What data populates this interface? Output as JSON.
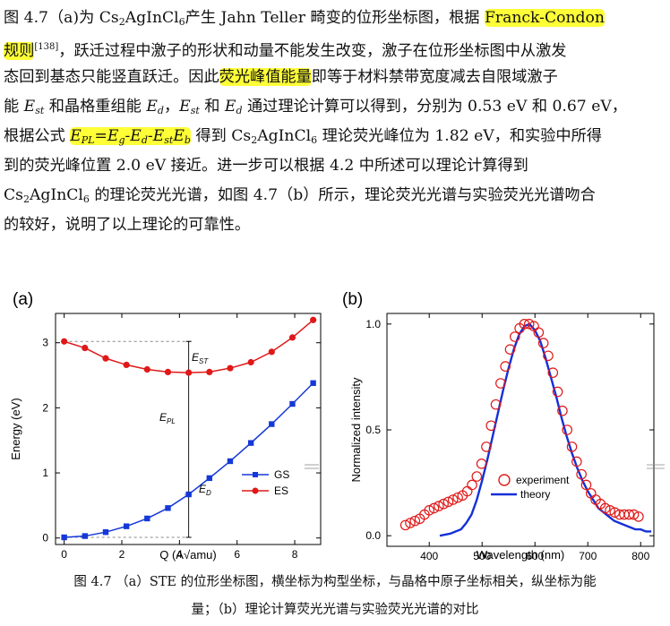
{
  "paragraph": {
    "l1": {
      "a": "图 4.7（a)为 Cs",
      "b": "2",
      "c": "AgInCl",
      "d": "6",
      "e": "产生 Jahn Teller 畸变的位形坐标图，根据 ",
      "hl": "Franck-Condon"
    },
    "l2": {
      "hl": "规则",
      "ref": "[138]",
      "rest": "，跃迁过程中激子的形状和动量不能发生改变，激子在位形坐标图中从激发"
    },
    "l3": {
      "a": "态回到基态只能竖直跃迁。因此",
      "hl": "荧光峰值能量",
      "b": "即等于材料禁带宽度减去自限域激子"
    },
    "l4": {
      "a": "能 ",
      "est": "E",
      "est_sub": "st",
      "b": " 和晶格重组能 ",
      "ed": "E",
      "ed_sub": "d",
      "c": "，",
      "est2": "E",
      "est2_sub": "st",
      "d": " 和 ",
      "ed2": "E",
      "ed2_sub": "d",
      "e": " 通过理论计算可以得到，分别为 0.53 eV 和 0.67 eV，"
    },
    "l5": {
      "a": "根据公式 ",
      "f1": "E",
      "f1s": "PL",
      "f2": "=E",
      "f2s": "g",
      "f3": "-E",
      "f3s": "d",
      "f4": "-E",
      "f4s": "st",
      "f5": "E",
      "f5s": "b",
      "b": " 得到 Cs",
      "b2": "2",
      "b3": "AgInCl",
      "b4": "6",
      "c": " 理论荧光峰位为 1.82 eV，和实验中所得"
    },
    "l6": {
      "text": "到的荧光峰位置  2.0 eV  接近。进一步可以根据  4.2  中所述可以理论计算得到"
    },
    "l7": {
      "a": "Cs",
      "b": "2",
      "c": "AgInCl",
      "d": "6",
      "e": " 的理论荧光光谱，如图  4.7（b）所示，理论荧光光谱与实验荧光光谱吻合"
    },
    "l8": {
      "text": "的较好，说明了以上理论的可靠性。"
    }
  },
  "figure_a": {
    "panel_label": "(a)",
    "xlabel": "Q (A√amu)",
    "ylabel": "Energy (eV)",
    "annotations": {
      "est": "E",
      "est_sub": "ST",
      "epl": "E",
      "epl_sub": "PL",
      "ed": "E",
      "ed_sub": "D"
    },
    "legend": [
      "GS",
      "ES"
    ],
    "colors": {
      "gs": "#1538d8",
      "es": "#e01818"
    },
    "chart_data": {
      "type": "line",
      "x": [
        0,
        0.72,
        1.44,
        2.16,
        2.88,
        3.6,
        4.32,
        5.04,
        5.76,
        6.48,
        7.2,
        7.92,
        8.64
      ],
      "series": [
        {
          "name": "GS",
          "values": [
            0.01,
            0.03,
            0.09,
            0.18,
            0.3,
            0.46,
            0.67,
            0.92,
            1.18,
            1.46,
            1.75,
            2.06,
            2.38
          ]
        },
        {
          "name": "ES",
          "values": [
            3.02,
            2.92,
            2.76,
            2.66,
            2.59,
            2.55,
            2.54,
            2.55,
            2.61,
            2.7,
            2.86,
            3.08,
            3.35
          ]
        }
      ],
      "xlim": [
        -0.3,
        8.9
      ],
      "ylim": [
        -0.1,
        3.45
      ],
      "xticks": [
        "0",
        "2",
        "4",
        "6",
        "8"
      ],
      "yticks": [
        "0",
        "1",
        "2",
        "3"
      ]
    }
  },
  "figure_b": {
    "panel_label": "(b)",
    "xlabel": "Wavelength (nm)",
    "ylabel": "Normalized intensity",
    "legend": [
      "experiment",
      "theory"
    ],
    "colors": {
      "experiment": "#e01818",
      "theory": "#1530d8"
    },
    "chart_data": {
      "type": "line",
      "xlim": [
        320,
        825
      ],
      "ylim": [
        -0.05,
        1.05
      ],
      "xticks": [
        "400",
        "500",
        "600",
        "700",
        "800"
      ],
      "yticks": [
        "0.0",
        "0.5",
        "1.0"
      ],
      "series": [
        {
          "name": "experiment",
          "x": [
            355,
            364,
            373,
            382,
            391,
            400,
            409,
            418,
            427,
            436,
            445,
            454,
            463,
            472,
            481,
            490,
            499,
            508,
            517,
            526,
            535,
            544,
            553,
            562,
            571,
            580,
            589,
            598,
            607,
            616,
            625,
            634,
            643,
            652,
            661,
            670,
            679,
            688,
            697,
            706,
            715,
            724,
            733,
            742,
            751,
            760,
            769,
            778,
            787,
            796
          ],
          "values": [
            0.05,
            0.06,
            0.07,
            0.08,
            0.1,
            0.12,
            0.13,
            0.14,
            0.15,
            0.16,
            0.17,
            0.18,
            0.19,
            0.21,
            0.24,
            0.28,
            0.34,
            0.42,
            0.52,
            0.62,
            0.72,
            0.8,
            0.88,
            0.94,
            0.98,
            1.0,
            1.0,
            0.99,
            0.96,
            0.91,
            0.85,
            0.77,
            0.68,
            0.59,
            0.5,
            0.42,
            0.35,
            0.29,
            0.24,
            0.2,
            0.17,
            0.15,
            0.13,
            0.12,
            0.11,
            0.1,
            0.1,
            0.1,
            0.1,
            0.09
          ]
        },
        {
          "name": "theory",
          "x": [
            420,
            440,
            460,
            470,
            480,
            490,
            500,
            510,
            520,
            530,
            540,
            550,
            560,
            570,
            580,
            590,
            600,
            610,
            620,
            630,
            640,
            650,
            660,
            670,
            680,
            690,
            700,
            710,
            720,
            730,
            740,
            750,
            760,
            770,
            780,
            790,
            800,
            810,
            820
          ],
          "values": [
            0.0,
            0.01,
            0.03,
            0.06,
            0.1,
            0.17,
            0.26,
            0.36,
            0.47,
            0.58,
            0.69,
            0.79,
            0.88,
            0.95,
            0.99,
            1.0,
            0.97,
            0.92,
            0.84,
            0.75,
            0.66,
            0.56,
            0.47,
            0.39,
            0.32,
            0.26,
            0.21,
            0.17,
            0.13,
            0.11,
            0.09,
            0.07,
            0.06,
            0.05,
            0.04,
            0.03,
            0.03,
            0.02,
            0.02
          ]
        }
      ]
    }
  },
  "caption": {
    "line1": "图  4.7  （a）STE 的位形坐标图，横坐标为构型坐标，与晶格中原子坐标相关，纵坐标为能",
    "line2": "量；（b）理论计算荧光光谱与实验荧光光谱的对比"
  }
}
